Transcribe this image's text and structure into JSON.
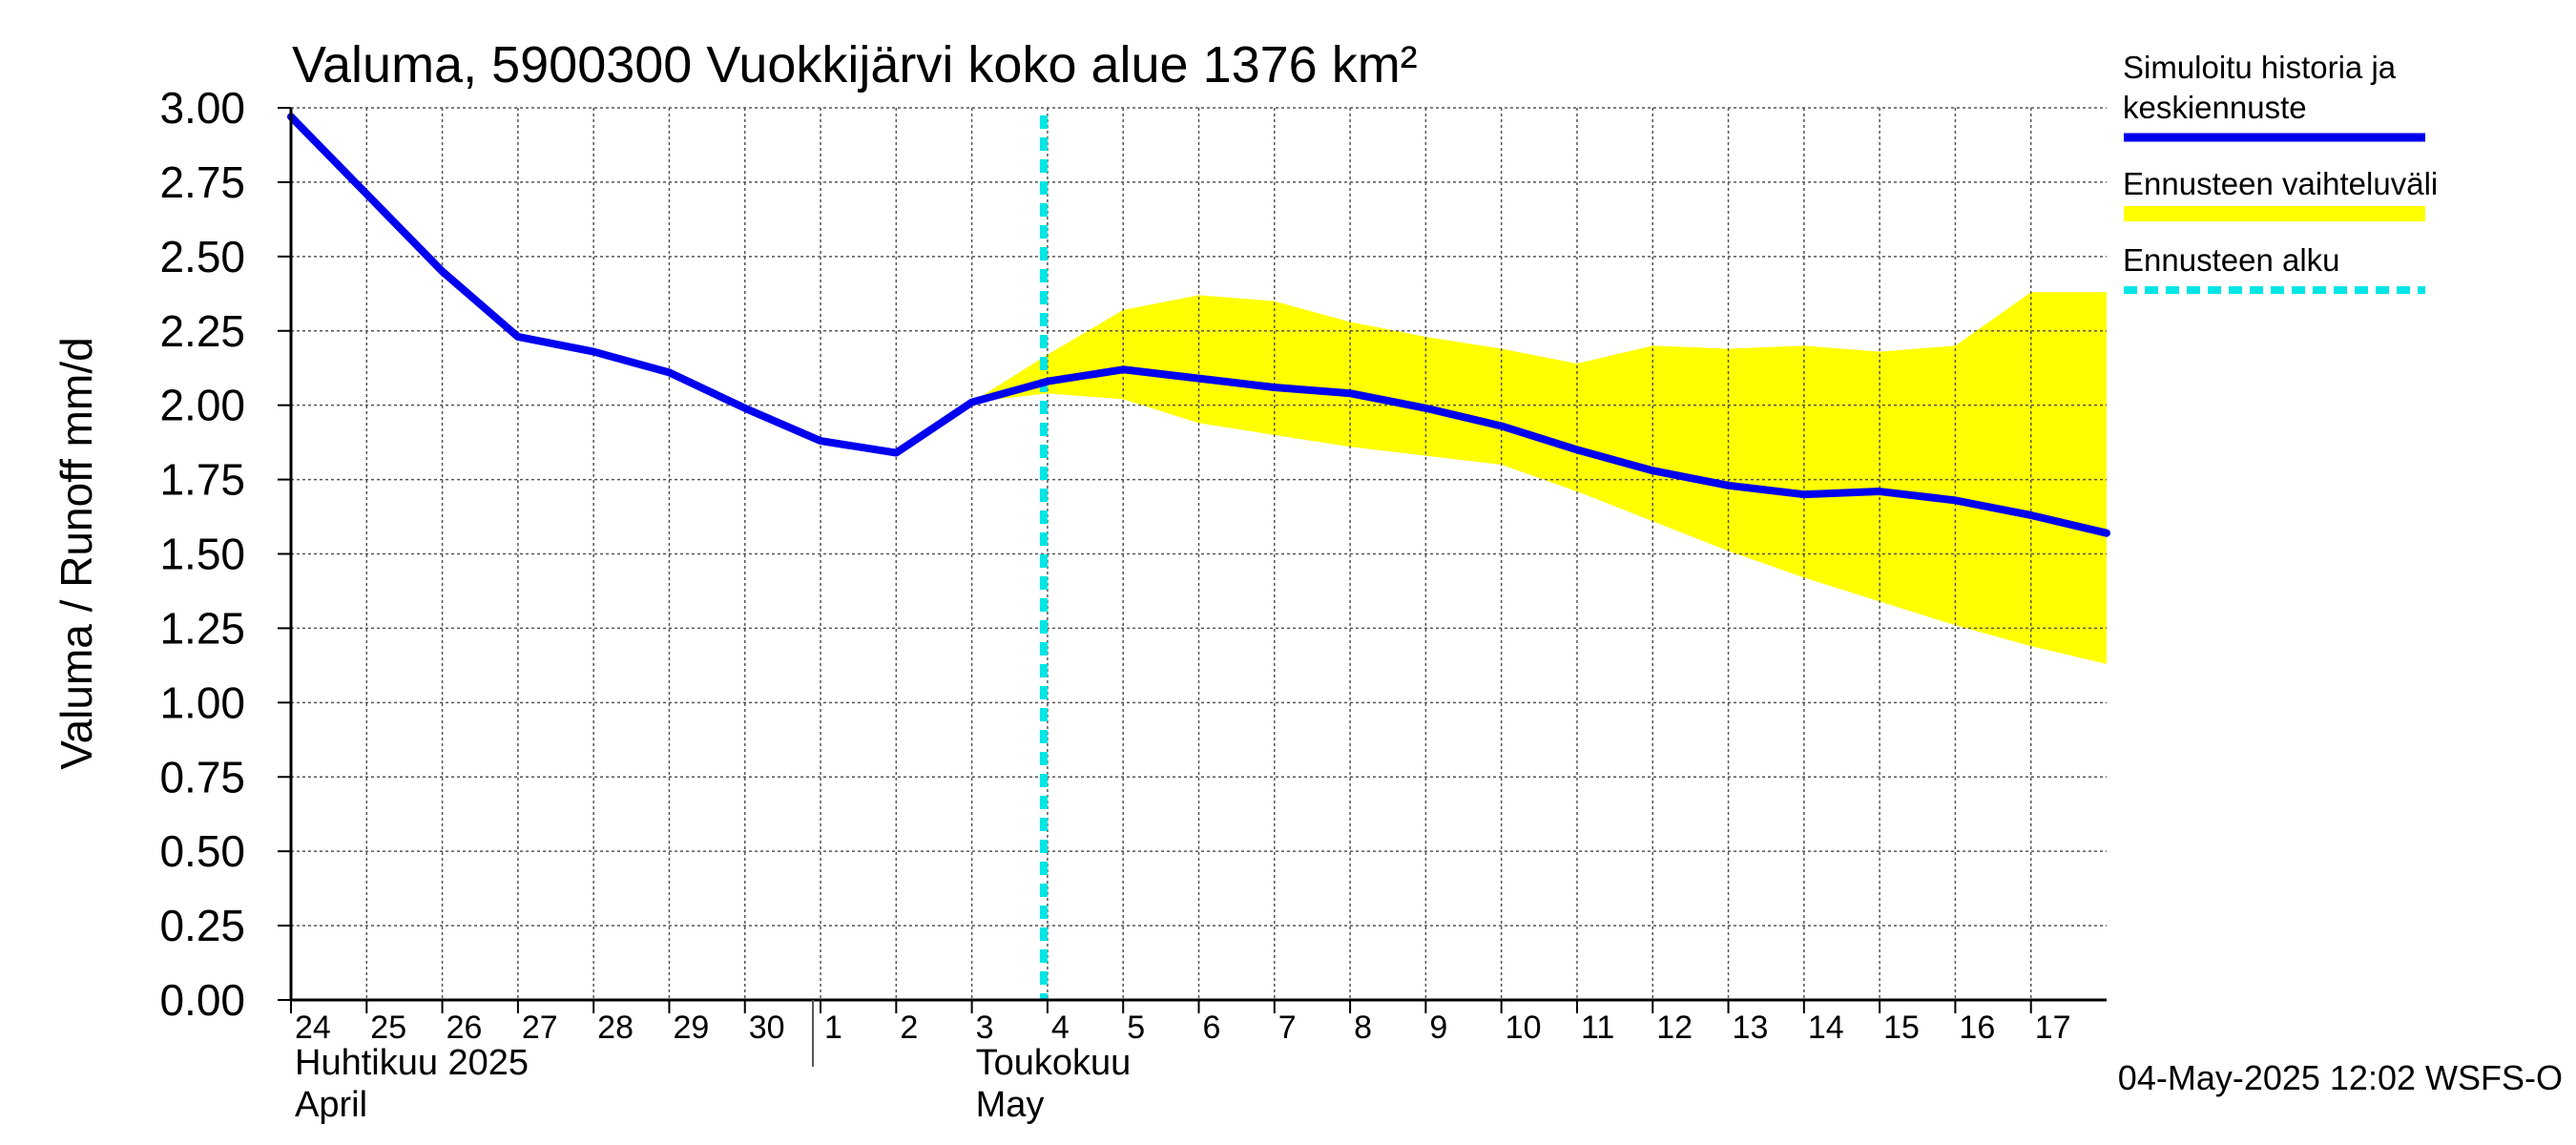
{
  "chart_data": {
    "type": "line",
    "title": "Valuma, 5900300 Vuokkijärvi koko alue 1376 km²",
    "ylabel": "Valuma / Runoff     mm/d",
    "ylim": [
      0,
      3
    ],
    "yticks": [
      "0.00",
      "0.25",
      "0.50",
      "0.75",
      "1.00",
      "1.25",
      "1.50",
      "1.75",
      "2.00",
      "2.25",
      "2.50",
      "2.75",
      "3.00"
    ],
    "grid": true,
    "x_range": [
      "2025-04-24",
      "2025-05-17T24:00"
    ],
    "x_tick_labels": [
      {
        "date": "2025-04-24",
        "label": "24"
      },
      {
        "date": "2025-04-25",
        "label": "25"
      },
      {
        "date": "2025-04-26",
        "label": "26"
      },
      {
        "date": "2025-04-27",
        "label": "27"
      },
      {
        "date": "2025-04-28",
        "label": "28"
      },
      {
        "date": "2025-04-29",
        "label": "29"
      },
      {
        "date": "2025-04-30",
        "label": "30"
      },
      {
        "date": "2025-05-01",
        "label": "1"
      },
      {
        "date": "2025-05-02",
        "label": "2"
      },
      {
        "date": "2025-05-03",
        "label": "3"
      },
      {
        "date": "2025-05-04",
        "label": "4"
      },
      {
        "date": "2025-05-05",
        "label": "5"
      },
      {
        "date": "2025-05-06",
        "label": "6"
      },
      {
        "date": "2025-05-07",
        "label": "7"
      },
      {
        "date": "2025-05-08",
        "label": "8"
      },
      {
        "date": "2025-05-09",
        "label": "9"
      },
      {
        "date": "2025-05-10",
        "label": "10"
      },
      {
        "date": "2025-05-11",
        "label": "11"
      },
      {
        "date": "2025-05-12",
        "label": "12"
      },
      {
        "date": "2025-05-13",
        "label": "13"
      },
      {
        "date": "2025-05-14",
        "label": "14"
      },
      {
        "date": "2025-05-15",
        "label": "15"
      },
      {
        "date": "2025-05-16",
        "label": "16"
      },
      {
        "date": "2025-05-17",
        "label": "17"
      }
    ],
    "month_labels": [
      {
        "date": "2025-04-24",
        "line1": "Huhtikuu  2025",
        "line2": "April"
      },
      {
        "date": "2025-05-03",
        "line1": "Toukokuu",
        "line2": "May"
      }
    ],
    "month_separator": "2025-05-01",
    "forecast_start": "2025-05-04",
    "series": [
      {
        "name": "Simuloitu historia ja keskiennuste",
        "color": "#0000ee",
        "x": [
          "2025-04-24",
          "2025-04-25",
          "2025-04-26",
          "2025-04-27",
          "2025-04-28",
          "2025-04-29",
          "2025-04-30",
          "2025-05-01",
          "2025-05-02",
          "2025-05-03",
          "2025-05-04",
          "2025-05-05",
          "2025-05-06",
          "2025-05-07",
          "2025-05-08",
          "2025-05-09",
          "2025-05-10",
          "2025-05-11",
          "2025-05-12",
          "2025-05-13",
          "2025-05-14",
          "2025-05-15",
          "2025-05-16",
          "2025-05-17",
          "2025-05-17T24:00"
        ],
        "values": [
          2.97,
          2.71,
          2.45,
          2.23,
          2.18,
          2.11,
          1.99,
          1.88,
          1.84,
          2.01,
          2.08,
          2.12,
          2.09,
          2.06,
          2.04,
          1.99,
          1.93,
          1.85,
          1.78,
          1.73,
          1.7,
          1.71,
          1.68,
          1.63,
          1.57
        ]
      }
    ],
    "band": {
      "name": "Ennusteen vaihteluväli",
      "color": "#ffff00",
      "x": [
        "2025-05-03",
        "2025-05-04",
        "2025-05-05",
        "2025-05-06",
        "2025-05-07",
        "2025-05-08",
        "2025-05-09",
        "2025-05-10",
        "2025-05-11",
        "2025-05-12",
        "2025-05-13",
        "2025-05-14",
        "2025-05-15",
        "2025-05-16",
        "2025-05-17",
        "2025-05-17T24:00"
      ],
      "upper": [
        2.01,
        2.17,
        2.32,
        2.37,
        2.35,
        2.28,
        2.23,
        2.19,
        2.14,
        2.2,
        2.19,
        2.2,
        2.18,
        2.2,
        2.38,
        2.38
      ],
      "lower": [
        2.01,
        2.04,
        2.02,
        1.94,
        1.9,
        1.86,
        1.83,
        1.8,
        1.71,
        1.61,
        1.51,
        1.42,
        1.34,
        1.26,
        1.19,
        1.13
      ]
    },
    "legend": {
      "position": "right",
      "items": [
        {
          "label_line1": "Simuloitu historia ja",
          "label_line2": "keskiennuste",
          "swatch": "line",
          "color": "#0000ee"
        },
        {
          "label_line1": "Ennusteen vaihteluväli",
          "label_line2": "",
          "swatch": "band",
          "color": "#ffff00"
        },
        {
          "label_line1": "Ennusteen alku",
          "label_line2": "",
          "swatch": "dashed",
          "color": "#00e5e5"
        }
      ]
    },
    "footer": "04-May-2025 12:02 WSFS-O"
  }
}
